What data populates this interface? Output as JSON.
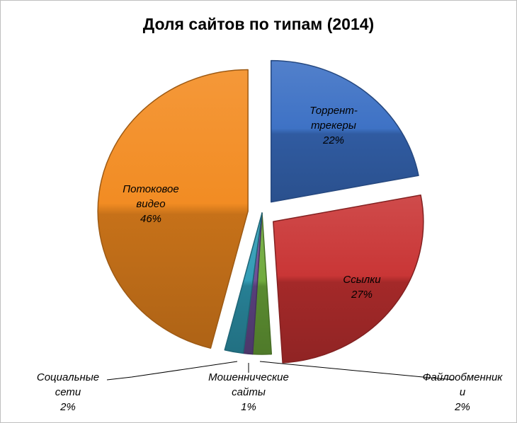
{
  "chart_data": {
    "type": "pie",
    "title": "Доля сайтов по типам (2014)",
    "slices": [
      {
        "name": "Торрент-трекеры",
        "value": 22,
        "value_label": "22%",
        "label_lines": [
          "Торрент-",
          "трекеры"
        ],
        "color": "#3a6fc4",
        "exploded": true
      },
      {
        "name": "Ссылки",
        "value": 27,
        "value_label": "27%",
        "label_lines": [
          "Ссылки"
        ],
        "color": "#c83232",
        "exploded": true
      },
      {
        "name": "Файлообменники",
        "value": 2,
        "value_label": "2%",
        "label_lines": [
          "Файлообменник",
          "и"
        ],
        "color": "#6ea93a",
        "exploded": false
      },
      {
        "name": "Мошеннические сайты",
        "value": 1,
        "value_label": "1%",
        "label_lines": [
          "Мошеннические",
          "сайты"
        ],
        "color": "#6a4c93",
        "exploded": false
      },
      {
        "name": "Социальные сети",
        "value": 2,
        "value_label": "2%",
        "label_lines": [
          "Социальные",
          "сети"
        ],
        "color": "#2f9bb5",
        "exploded": false
      },
      {
        "name": "Потоковое видео",
        "value": 46,
        "value_label": "46%",
        "label_lines": [
          "Потоковое",
          "видео"
        ],
        "color": "#f28a1e",
        "exploded": true
      }
    ],
    "legend": "none",
    "labels": "on-slice and leader lines"
  }
}
